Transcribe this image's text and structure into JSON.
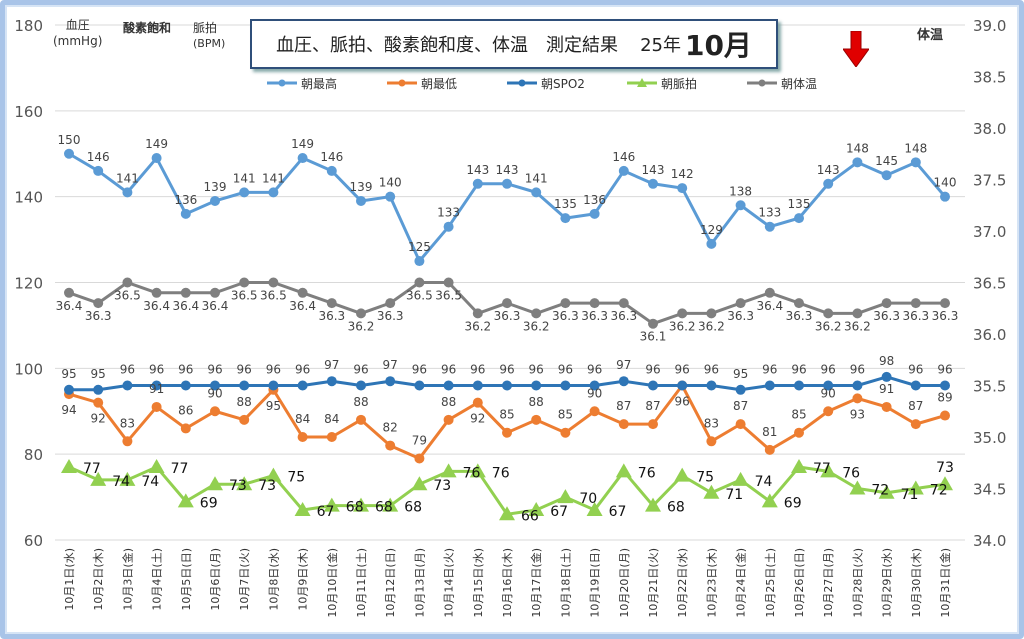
{
  "title": {
    "main": "血圧、脈拍、酸素飽和度、体温　測定結果",
    "year": "25年",
    "month": "10月"
  },
  "axis_labels": {
    "bp_line1": "血圧",
    "bp_line2": "(mmHg)",
    "spo2": "酸素飽和",
    "pulse_line1": "脈拍",
    "pulse_line2": "(BPM)",
    "temp": "体温"
  },
  "chart_data": {
    "type": "line",
    "categories": [
      "10月1日(水)",
      "10月2日(木)",
      "10月3日(金)",
      "10月4日(土)",
      "10月5日(日)",
      "10月6日(月)",
      "10月7日(火)",
      "10月8日(水)",
      "10月9日(木)",
      "10月10日(金)",
      "10月11日(土)",
      "10月12日(日)",
      "10月13日(月)",
      "10月14日(火)",
      "10月15日(水)",
      "10月16日(木)",
      "10月17日(金)",
      "10月18日(土)",
      "10月19日(日)",
      "10月20日(月)",
      "10月21日(火)",
      "10月22日(水)",
      "10月23日(木)",
      "10月24日(金)",
      "10月25日(土)",
      "10月26日(日)",
      "10月27日(月)",
      "10月28日(火)",
      "10月29日(水)",
      "10月30日(木)",
      "10月31日(金)"
    ],
    "y_left": {
      "range": [
        60,
        180
      ],
      "ticks": [
        60,
        80,
        100,
        120,
        140,
        160,
        180
      ]
    },
    "y_right": {
      "range": [
        34.0,
        39.0
      ],
      "ticks": [
        "34.0",
        "34.5",
        "35.0",
        "35.5",
        "36.0",
        "36.5",
        "37.0",
        "37.5",
        "38.0",
        "38.5",
        "39.0"
      ]
    },
    "grid": true,
    "legend": "top",
    "series": [
      {
        "name": "朝最高",
        "axis": "left",
        "color": "#5b9bd5",
        "marker": "circle",
        "values": [
          150,
          146,
          141,
          149,
          136,
          139,
          141,
          141,
          149,
          146,
          139,
          140,
          125,
          133,
          143,
          143,
          141,
          135,
          136,
          146,
          143,
          142,
          129,
          138,
          133,
          135,
          143,
          148,
          145,
          148,
          140
        ]
      },
      {
        "name": "朝最低",
        "axis": "left",
        "color": "#ed7d31",
        "marker": "circle",
        "values": [
          94,
          92,
          83,
          91,
          86,
          90,
          88,
          95,
          84,
          84,
          88,
          82,
          79,
          88,
          92,
          85,
          88,
          85,
          90,
          87,
          87,
          96,
          83,
          87,
          81,
          85,
          90,
          93,
          91,
          87,
          89
        ]
      },
      {
        "name": "朝SPO2",
        "axis": "left",
        "color": "#2e75b6",
        "marker": "circle",
        "values": [
          95,
          95,
          96,
          96,
          96,
          96,
          96,
          96,
          96,
          97,
          96,
          97,
          96,
          96,
          96,
          96,
          96,
          96,
          96,
          97,
          96,
          96,
          96,
          95,
          96,
          96,
          96,
          96,
          98,
          96,
          96
        ]
      },
      {
        "name": "朝脈拍",
        "axis": "left",
        "color": "#92d050",
        "marker": "triangle",
        "values": [
          77,
          74,
          74,
          77,
          69,
          73,
          73,
          75,
          67,
          68,
          68,
          68,
          73,
          76,
          76,
          66,
          67,
          70,
          67,
          76,
          68,
          75,
          71,
          74,
          69,
          77,
          76,
          72,
          71,
          72,
          73
        ]
      },
      {
        "name": "朝体温",
        "axis": "right",
        "color": "#7f7f7f",
        "marker": "circle",
        "values": [
          36.4,
          36.3,
          36.5,
          36.4,
          36.4,
          36.4,
          36.5,
          36.5,
          36.4,
          36.3,
          36.2,
          36.3,
          36.5,
          36.5,
          36.2,
          36.3,
          36.2,
          36.3,
          36.3,
          36.3,
          36.1,
          36.2,
          36.2,
          36.3,
          36.4,
          36.3,
          36.2,
          36.2,
          36.3,
          36.3,
          36.3
        ]
      }
    ]
  },
  "colors": {
    "arrow": "#e00000",
    "frame": "#a9c4e8"
  }
}
